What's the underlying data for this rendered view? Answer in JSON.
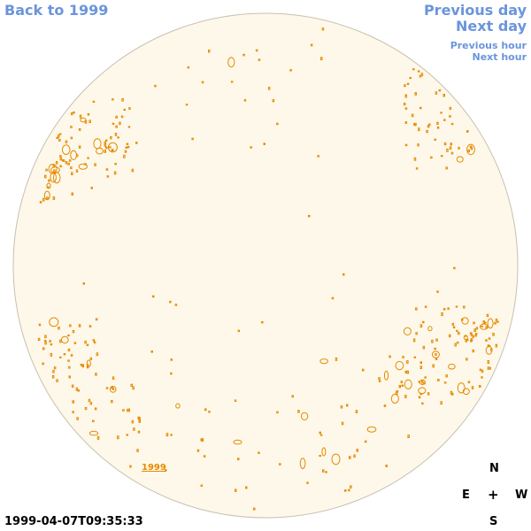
{
  "nav": {
    "back_label": "Back to 1999",
    "prev_day_label": "Previous day",
    "next_day_label": "Next day",
    "prev_hour_label": "Previous hour",
    "next_hour_label": "Next hour"
  },
  "map": {
    "year_link_label": "1999",
    "disk_fill": "#fdf8ea",
    "disk_stroke": "#c9c0b0",
    "contour_color": "#e68a00"
  },
  "compass": {
    "north": "N",
    "east": "E",
    "center": "+",
    "west": "W",
    "south": "S"
  },
  "timestamp": "1999-04-07T09:35:33"
}
